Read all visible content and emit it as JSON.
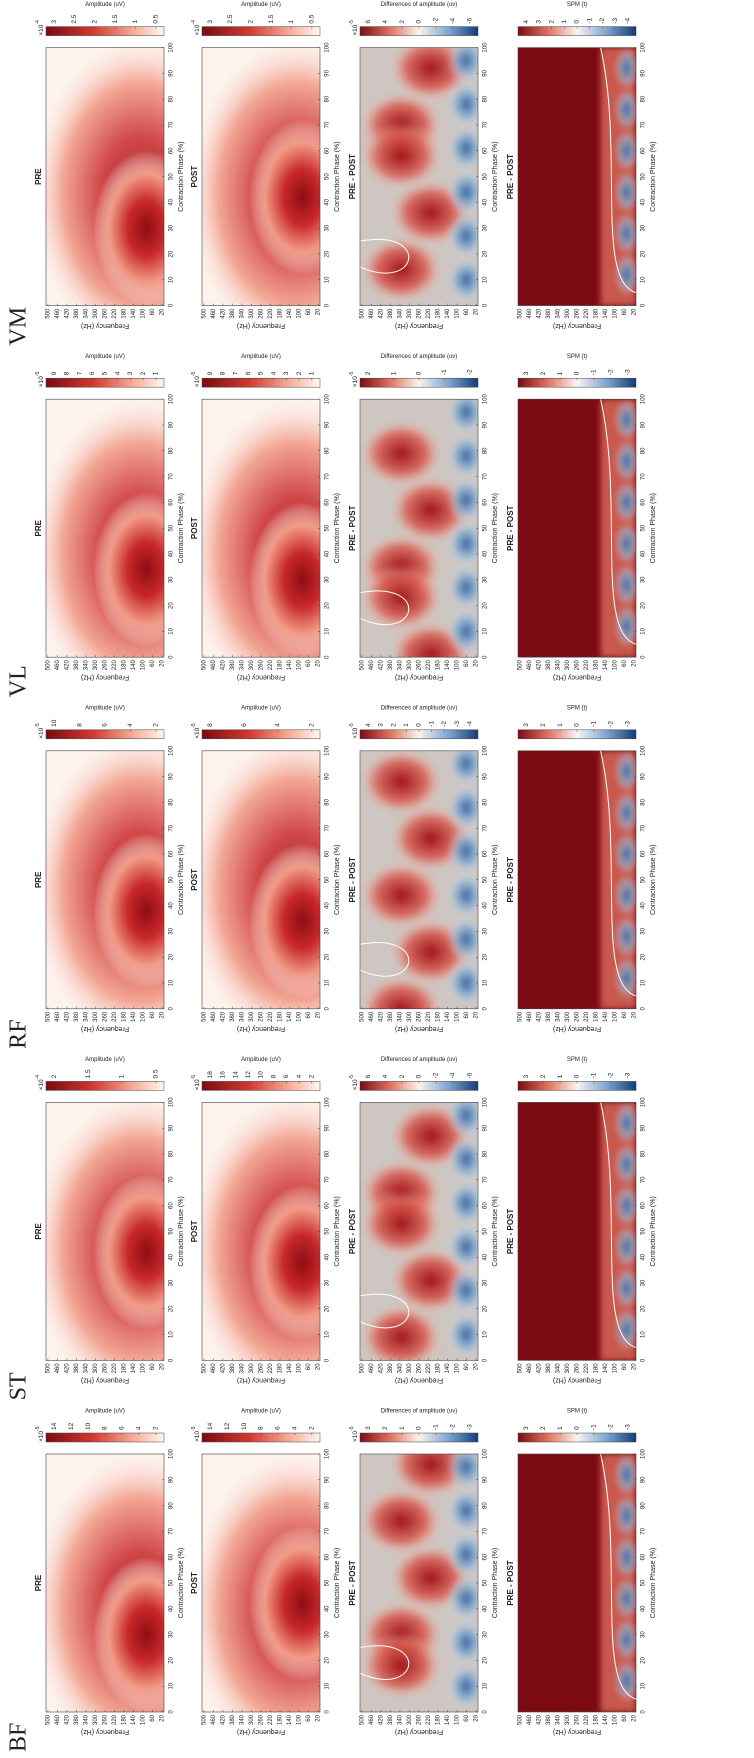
{
  "axes": {
    "x_label": "Contraction Phase (%)",
    "x_ticks": [
      0,
      10,
      20,
      30,
      40,
      50,
      60,
      70,
      80,
      90,
      100
    ],
    "xlim": [
      0,
      100
    ],
    "y_label": "Frequency (Hz)",
    "y_ticks": [
      500,
      460,
      420,
      380,
      340,
      300,
      260,
      220,
      180,
      140,
      100,
      60,
      20
    ],
    "ylim": [
      12,
      508
    ]
  },
  "figure": {
    "muscles": [
      {
        "name": "BF",
        "panels": [
          {
            "title": "PRE",
            "colorbar": {
              "multiplier": {
                "base": "×10",
                "power": "-5"
              },
              "ticks": [
                14,
                12,
                10,
                8,
                6,
                4,
                2
              ],
              "label": "Amplitude (uV)"
            }
          },
          {
            "title": "POST",
            "colorbar": {
              "multiplier": {
                "base": "×10",
                "power": "-5"
              },
              "ticks": [
                14,
                12,
                10,
                8,
                6,
                4,
                2
              ],
              "label": "Amplitude (uV)"
            }
          },
          {
            "title": "PRE - POST",
            "colorbar": {
              "multiplier": {
                "base": "×10",
                "power": "-5"
              },
              "ticks": [
                3,
                2,
                1,
                0,
                -1,
                -2,
                -3
              ],
              "label": "Differences of amplitude (uv)"
            }
          },
          {
            "title": "PRE - POST",
            "colorbar": {
              "ticks": [
                3,
                2,
                1,
                0,
                -1,
                -2,
                -3
              ],
              "label": "SPM {t}"
            }
          }
        ]
      },
      {
        "name": "ST",
        "panels": [
          {
            "title": "PRE",
            "colorbar": {
              "multiplier": {
                "base": "×10",
                "power": "-4"
              },
              "ticks": [
                2,
                1.5,
                1,
                0.5
              ],
              "label": "Amplitude (uV)"
            }
          },
          {
            "title": "POST",
            "colorbar": {
              "multiplier": {
                "base": "×10",
                "power": "-5"
              },
              "ticks": [
                18,
                16,
                14,
                12,
                10,
                8,
                6,
                4,
                2
              ],
              "label": "Amplitude (uV)"
            }
          },
          {
            "title": "PRE - POST",
            "colorbar": {
              "multiplier": {
                "base": "×10",
                "power": "-5"
              },
              "ticks": [
                6,
                4,
                2,
                0,
                -2,
                -4,
                -6
              ],
              "label": "Differences of amplitude (uv)"
            }
          },
          {
            "title": "PRE - POST",
            "colorbar": {
              "ticks": [
                3,
                2,
                1,
                0,
                -1,
                -2,
                -3
              ],
              "label": "SPM {t}"
            }
          }
        ]
      },
      {
        "name": "RF",
        "panels": [
          {
            "title": "PRE",
            "colorbar": {
              "multiplier": {
                "base": "×10",
                "power": "-5"
              },
              "ticks": [
                10,
                8,
                6,
                4,
                2
              ],
              "label": "Amplitude (uV)"
            }
          },
          {
            "title": "POST",
            "colorbar": {
              "multiplier": {
                "base": "×10",
                "power": "-5"
              },
              "ticks": [
                8,
                6,
                4,
                2
              ],
              "label": "Amplitude (uV)"
            }
          },
          {
            "title": "PRE - POST",
            "colorbar": {
              "multiplier": {
                "base": "×10",
                "power": "-5"
              },
              "ticks": [
                4,
                3,
                2,
                1,
                0,
                -1,
                -2,
                -3,
                -4
              ],
              "label": "Differences of amplitude (uv)"
            }
          },
          {
            "title": "PRE - POST",
            "colorbar": {
              "ticks": [
                3,
                2,
                1,
                0,
                -1,
                -2,
                -3
              ],
              "label": "SPM {t}"
            }
          }
        ]
      },
      {
        "name": "VL",
        "panels": [
          {
            "title": "PRE",
            "colorbar": {
              "multiplier": {
                "base": "×10",
                "power": "-5"
              },
              "ticks": [
                9,
                8,
                7,
                6,
                5,
                4,
                3,
                2,
                1
              ],
              "label": "Amplitude (uV)"
            }
          },
          {
            "title": "POST",
            "colorbar": {
              "multiplier": {
                "base": "×10",
                "power": "-5"
              },
              "ticks": [
                9,
                8,
                7,
                6,
                5,
                4,
                3,
                2,
                1
              ],
              "label": "Amplitude (uV)"
            }
          },
          {
            "title": "PRE - POST",
            "colorbar": {
              "multiplier": {
                "base": "×10",
                "power": "-5"
              },
              "ticks": [
                2,
                1,
                0,
                -1,
                -2
              ],
              "label": "Differences of amplitude (uv)"
            }
          },
          {
            "title": "PRE - POST",
            "colorbar": {
              "ticks": [
                3,
                2,
                1,
                0,
                -1,
                -2,
                -3
              ],
              "label": "SPM {t}"
            }
          }
        ]
      },
      {
        "name": "VM",
        "panels": [
          {
            "title": "PRE",
            "colorbar": {
              "multiplier": {
                "base": "×10",
                "power": "-4"
              },
              "ticks": [
                3,
                2.5,
                2,
                1.5,
                1,
                0.5
              ],
              "label": "Amplitude (uV)"
            }
          },
          {
            "title": "POST",
            "colorbar": {
              "multiplier": {
                "base": "×10",
                "power": "-4"
              },
              "ticks": [
                3,
                2.5,
                2,
                1.5,
                1,
                0.5
              ],
              "label": "Amplitude (uV)"
            }
          },
          {
            "title": "PRE - POST",
            "colorbar": {
              "multiplier": {
                "base": "×10",
                "power": "-5"
              },
              "ticks": [
                6,
                4,
                2,
                0,
                -2,
                -4,
                -6
              ],
              "label": "Differences of amplitude (uv)"
            }
          },
          {
            "title": "PRE - POST",
            "colorbar": {
              "ticks": [
                4,
                3,
                2,
                1,
                0,
                -1,
                -2,
                -3,
                -4
              ],
              "label": "SPM {t}"
            }
          }
        ]
      }
    ]
  }
}
